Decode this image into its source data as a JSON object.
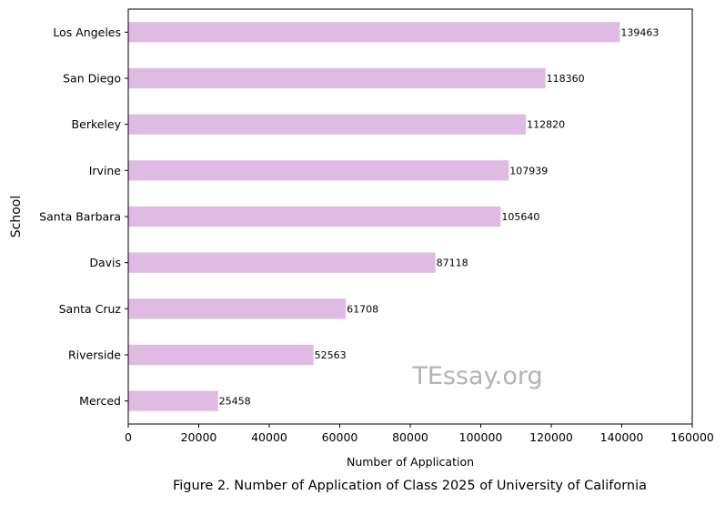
{
  "chart_data": {
    "type": "bar",
    "orientation": "horizontal",
    "categories": [
      "Los Angeles",
      "San Diego",
      "Berkeley",
      "Irvine",
      "Santa Barbara",
      "Davis",
      "Santa Cruz",
      "Riverside",
      "Merced"
    ],
    "values": [
      139463,
      118360,
      112820,
      107939,
      105640,
      87118,
      61708,
      52563,
      25458
    ],
    "xlabel": "Number of Application",
    "ylabel": "School",
    "xlim": [
      0,
      160000
    ],
    "xticks": [
      "0",
      "20000",
      "40000",
      "60000",
      "80000",
      "100000",
      "120000",
      "140000",
      "160000"
    ],
    "bar_color": "#dfbbe3",
    "grid": false,
    "watermark": "TEssay.org",
    "watermark_color": "#b3b3b3"
  },
  "caption": "Figure 2. Number of Application of Class 2025 of University of California"
}
